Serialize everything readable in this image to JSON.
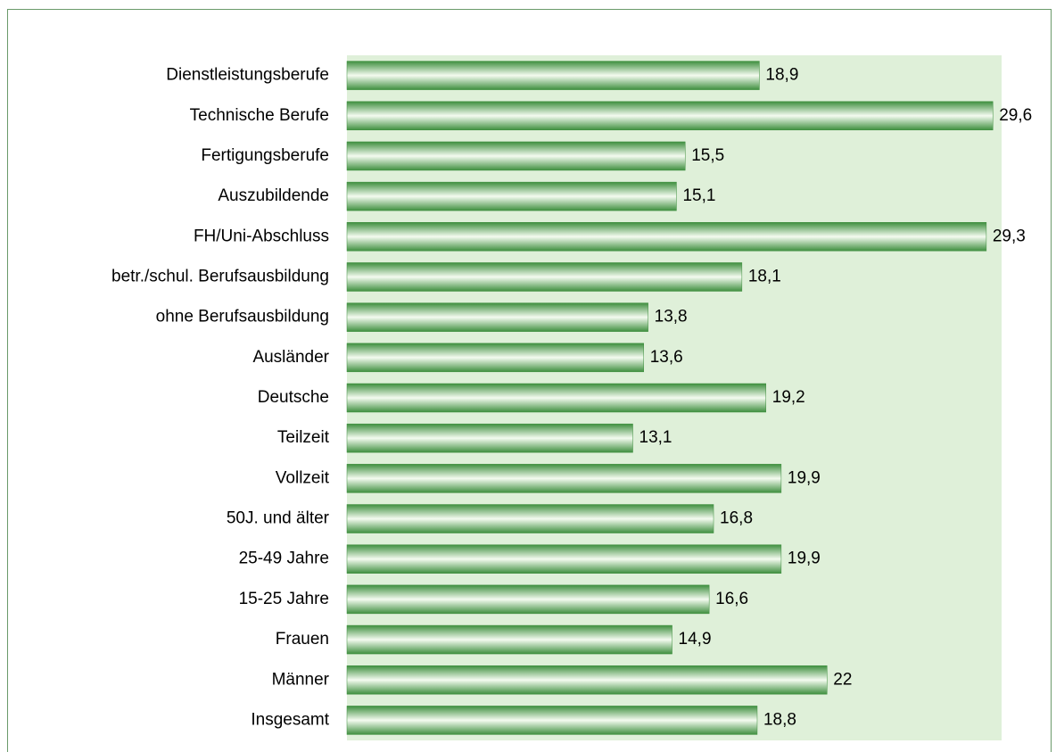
{
  "chart_data": {
    "type": "bar",
    "orientation": "horizontal",
    "categories": [
      "Dienstleistungsberufe",
      "Technische Berufe",
      "Fertigungsberufe",
      "Auszubildende",
      "FH/Uni-Abschluss",
      "betr./schul. Berufsausbildung",
      "ohne Berufsausbildung",
      "Ausländer",
      "Deutsche",
      "Teilzeit",
      "Vollzeit",
      "50J. und älter",
      "25-49 Jahre",
      "15-25 Jahre",
      "Frauen",
      "Männer",
      "Insgesamt"
    ],
    "values": [
      18.9,
      29.6,
      15.5,
      15.1,
      29.3,
      18.1,
      13.8,
      13.6,
      19.2,
      13.1,
      19.9,
      16.8,
      19.9,
      16.6,
      14.9,
      22,
      18.8
    ],
    "value_labels": [
      "18,9",
      "29,6",
      "15,5",
      "15,1",
      "29,3",
      "18,1",
      "13,8",
      "13,6",
      "19,2",
      "13,1",
      "19,9",
      "16,8",
      "19,9",
      "16,6",
      "14,9",
      "22",
      "18,8"
    ],
    "color": "#3f8f3f",
    "xlim": [
      0,
      30
    ]
  }
}
